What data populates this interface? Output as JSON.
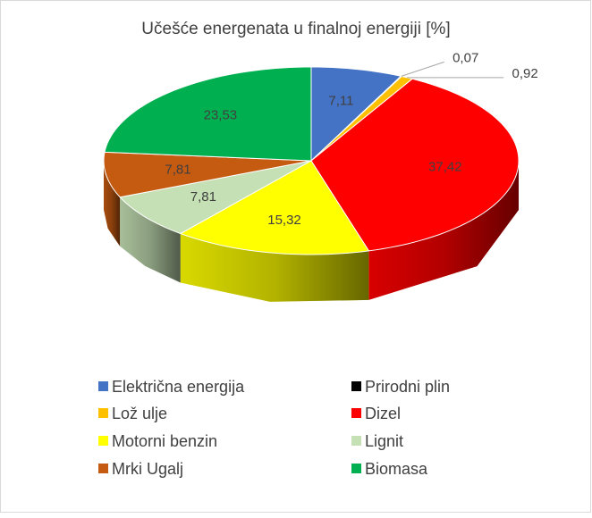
{
  "chart_data": {
    "type": "pie3d",
    "title": "Učešće energenata u finalnoj energiji [%]",
    "categories": [
      "Električna energija",
      "Prirodni plin",
      "Lož ulje",
      "Dizel",
      "Motorni benzin",
      "Lignit",
      "Mrki Ugalj",
      "Biomasa"
    ],
    "values": [
      7.11,
      0.07,
      0.92,
      37.42,
      15.32,
      7.81,
      7.81,
      23.53
    ],
    "value_labels": [
      "7,11",
      "0,07",
      "0,92",
      "37,42",
      "15,32",
      "7,81",
      "7,81",
      "23,53"
    ],
    "colors": [
      "#4472c4",
      "#000000",
      "#ffc000",
      "#ff0000",
      "#ffff00",
      "#c5e0b4",
      "#c55a11",
      "#00b050"
    ],
    "legend": "bottom"
  }
}
